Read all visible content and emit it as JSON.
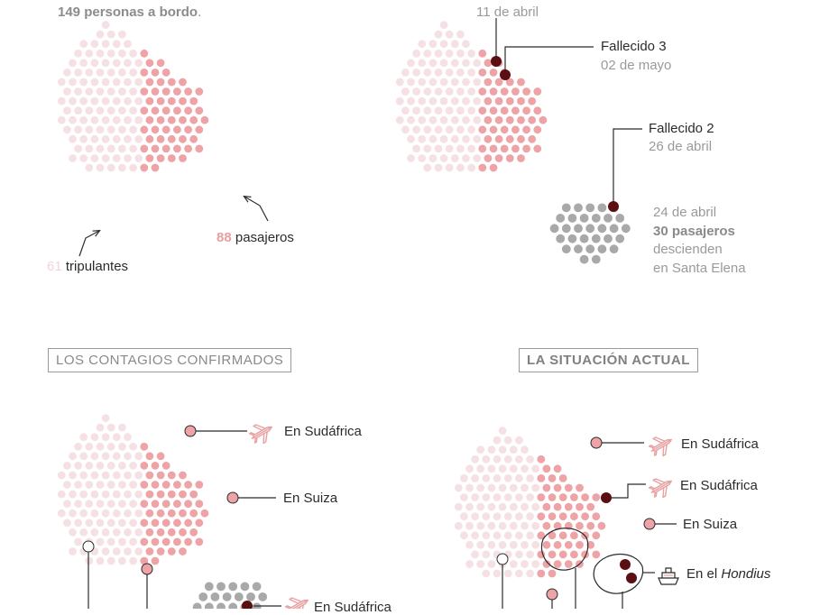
{
  "colors": {
    "crew": "#f5e1e3",
    "passenger": "#eea3a7",
    "deceased": "#5c0f13",
    "disembarked": "#a9a9a9",
    "text": "#2b2b2b",
    "muted": "#9a9a9a"
  },
  "panel1": {
    "total_count": "149",
    "total_text": " personas a bordo",
    "total_period": ".",
    "crew_count": "61",
    "crew_label": " tripulantes",
    "passenger_count": "88",
    "passenger_label": " pasajeros"
  },
  "panel2": {
    "top_date": "11 de abril",
    "death3_label": "Fallecido 3",
    "death3_date": "02 de mayo",
    "death2_label": "Fallecido 2",
    "death2_date": "26 de abril",
    "disembark_date": "24 de abril",
    "disembark_count": "30 pasajeros",
    "disembark_line1": "descienden",
    "disembark_line2": "en Santa Elena"
  },
  "panel3": {
    "title": "LOS CONTAGIOS CONFIRMADOS",
    "label_sudafrica": "En Sudáfrica",
    "label_suiza": "En Suiza",
    "label_sudafrica_bottom": "En Sudáfrica"
  },
  "panel4": {
    "title": "LA SITUACIÓN ACTUAL",
    "label_sudafrica_1": "En Sudáfrica",
    "label_sudafrica_2": "En Sudáfrica",
    "label_suiza": "En Suiza",
    "label_hondius_prefix": "En el ",
    "label_hondius_ship": "Hondius"
  },
  "icons": [
    "plane-icon",
    "ship-icon",
    "curved-arrow-icon"
  ]
}
